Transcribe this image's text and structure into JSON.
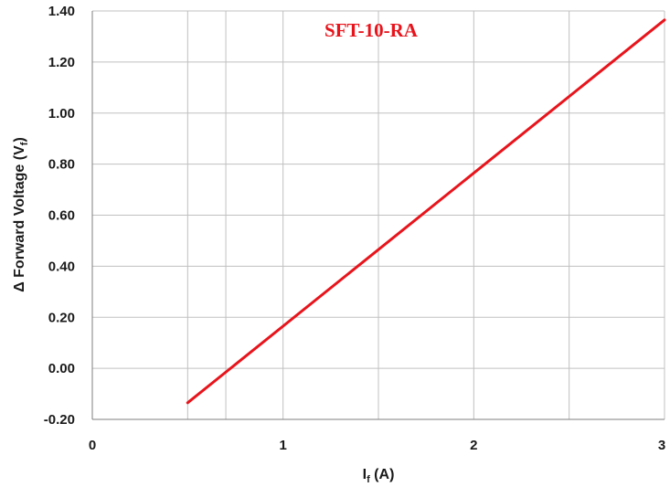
{
  "chart_data": {
    "type": "line",
    "title": "SFT-10-RA",
    "xlabel": {
      "main": "I",
      "sub": "f",
      "suffix": " (A)"
    },
    "ylabel": {
      "prefix": "Δ Forward Voltage (V",
      "sub": "f",
      "suffix": ")"
    },
    "xlim": [
      0,
      3
    ],
    "ylim": [
      -0.2,
      1.4
    ],
    "x_ticks": [
      0,
      1,
      2,
      3
    ],
    "x_tick_labels": [
      "0",
      "1",
      "2",
      "3"
    ],
    "x_minor_grid": [
      0.5,
      0.7,
      1.5,
      2.5
    ],
    "y_ticks": [
      -0.2,
      0,
      0.2,
      0.4,
      0.6,
      0.8,
      1.0,
      1.2,
      1.4
    ],
    "y_tick_labels": [
      "-0.20",
      "0.00",
      "0.20",
      "0.40",
      "0.60",
      "0.80",
      "1.00",
      "1.20",
      "1.40"
    ],
    "grid": true,
    "series": [
      {
        "color": "#e8141c",
        "x": [
          0.5,
          3.0
        ],
        "y": [
          -0.135,
          1.365
        ]
      }
    ]
  },
  "colors": {
    "title": "#e8141c",
    "grid": "#c0c0c0",
    "axis": "#7f7f7f"
  }
}
